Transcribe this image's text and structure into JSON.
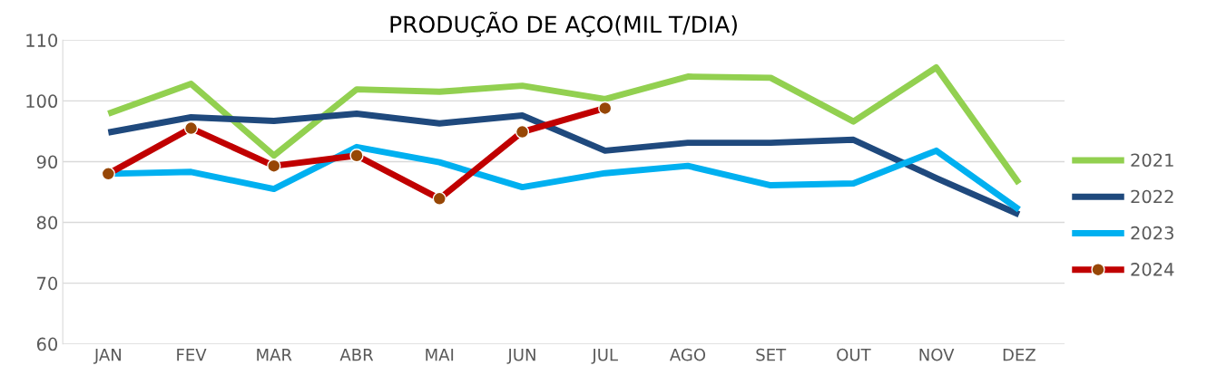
{
  "chart_data": {
    "type": "line",
    "title": "PRODUÇÃO DE AÇO(MIL T/DIA)",
    "categories": [
      "JAN",
      "FEV",
      "MAR",
      "ABR",
      "MAI",
      "JUN",
      "JUL",
      "AGO",
      "SET",
      "OUT",
      "NOV",
      "DEZ"
    ],
    "series": [
      {
        "name": "2021",
        "color": "#92d050",
        "values": [
          97.9,
          102.8,
          91.0,
          101.9,
          101.5,
          102.5,
          100.3,
          104.0,
          103.8,
          96.6,
          105.5,
          86.4
        ]
      },
      {
        "name": "2022",
        "color": "#1f497d",
        "values": [
          94.8,
          97.3,
          96.7,
          97.9,
          96.3,
          97.6,
          91.8,
          93.1,
          93.1,
          93.6,
          87.3,
          81.3
        ]
      },
      {
        "name": "2023",
        "color": "#00b0f0",
        "values": [
          88.0,
          88.3,
          85.5,
          92.4,
          89.9,
          85.8,
          88.1,
          89.3,
          86.1,
          86.4,
          91.8,
          82.1
        ]
      },
      {
        "name": "2024",
        "color": "#c00000",
        "marker": "circle",
        "values": [
          88.0,
          95.5,
          89.3,
          91.0,
          83.9,
          94.9,
          98.8,
          null,
          null,
          null,
          null,
          null
        ]
      }
    ],
    "ylim": [
      60,
      110
    ],
    "yticks": [
      60,
      70,
      80,
      90,
      100,
      110
    ],
    "grid": "y",
    "legend": "right",
    "marker": "none",
    "line_style": "solid"
  }
}
